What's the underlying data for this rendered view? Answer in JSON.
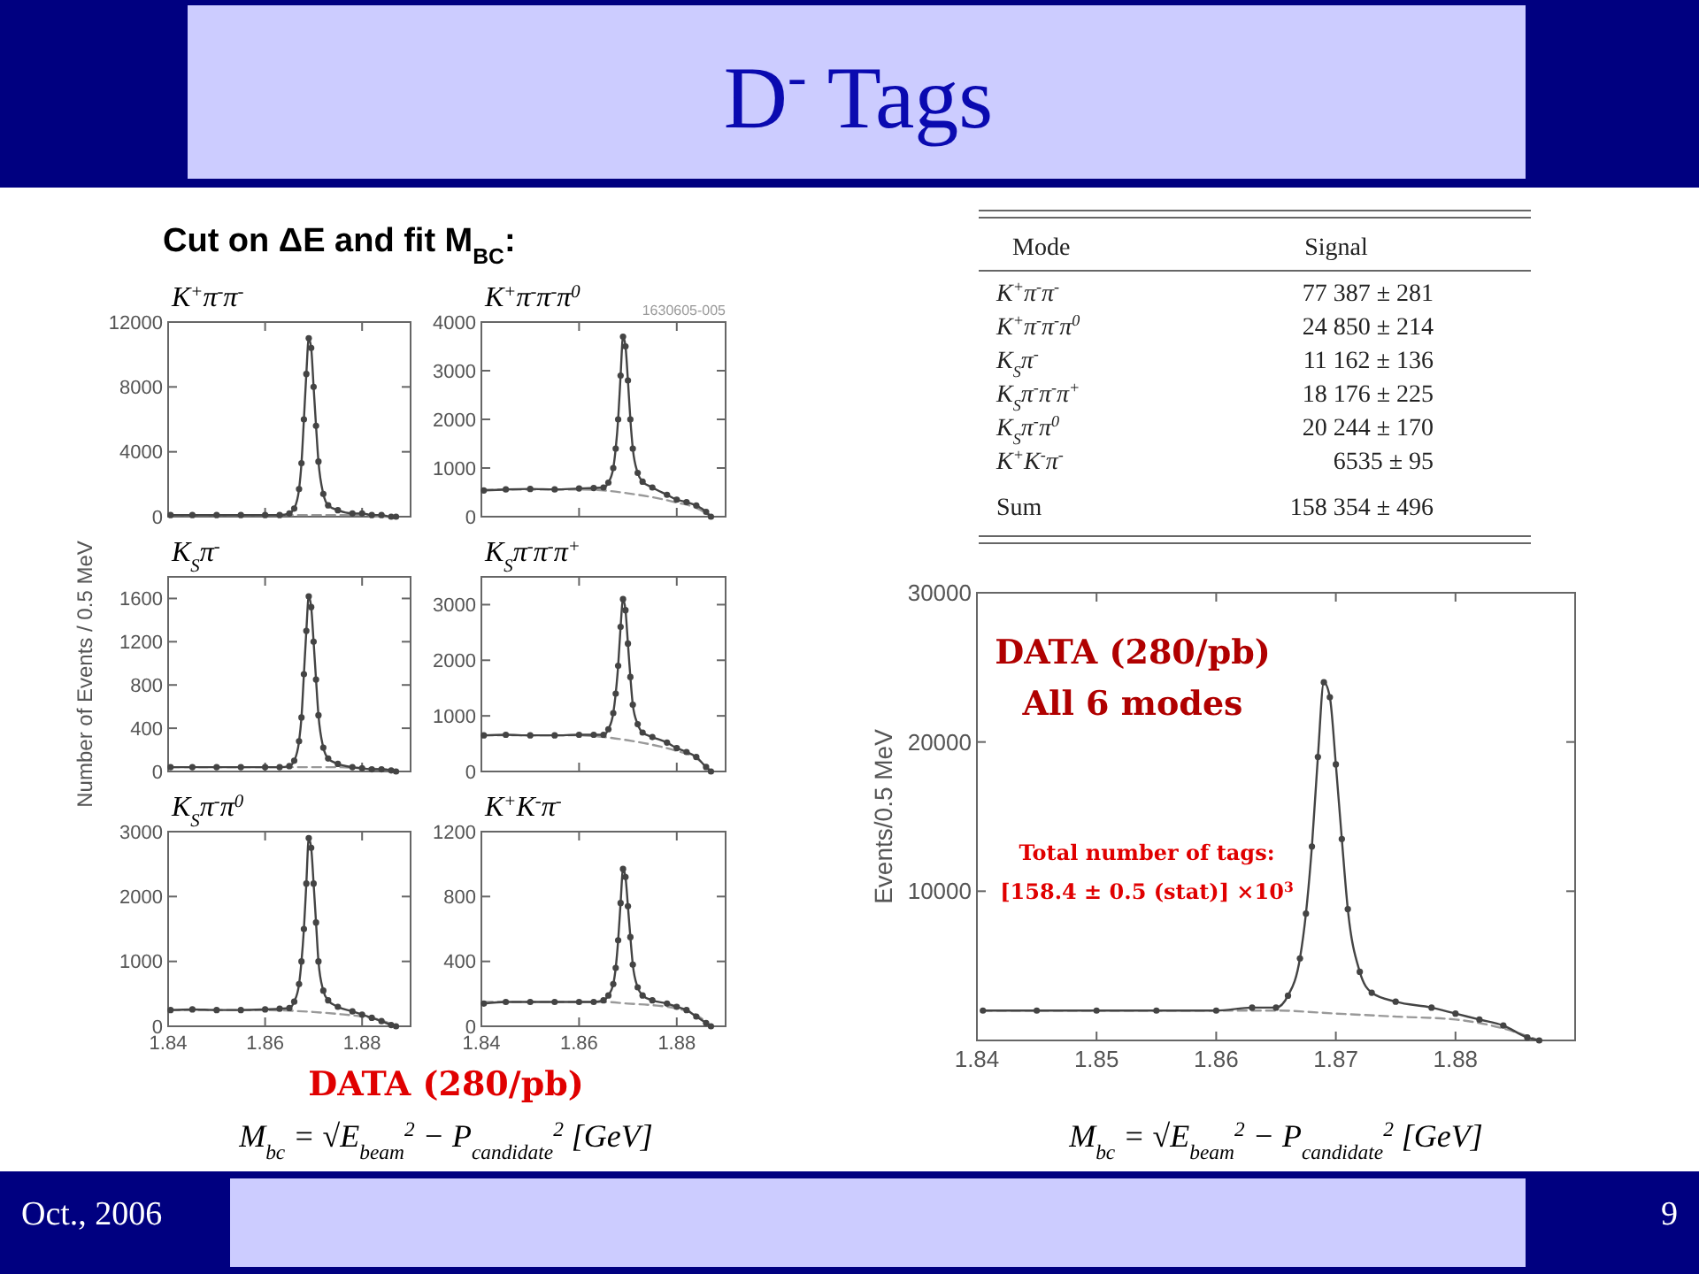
{
  "chart_data": [
    {
      "type": "other",
      "title": "D$^{-}$ Tags",
      "annotations": [
        "Cut on ΔE and fit M$_{BC}$:",
        "Oct., 2006",
        "9"
      ]
    },
    {
      "type": "line",
      "title": "K$^{+}$π$^{-}$π$^{-}$",
      "xlim": [
        1.84,
        1.89
      ],
      "xticks": [
        1.84,
        1.86,
        1.88
      ],
      "ylim": [
        0,
        12000
      ],
      "yticks": [
        0,
        4000,
        8000,
        12000
      ],
      "tick_labels": "y",
      "x": [
        1.8405,
        1.845,
        1.85,
        1.855,
        1.86,
        1.863,
        1.865,
        1.866,
        1.867,
        1.8675,
        1.868,
        1.8685,
        1.869,
        1.8695,
        1.87,
        1.8705,
        1.871,
        1.872,
        1.873,
        1.875,
        1.878,
        1.88,
        1.882,
        1.884,
        1.886,
        1.887
      ],
      "series": [
        {
          "color": "#444444",
          "marker": "circle",
          "values": [
            100,
            100,
            100,
            100,
            100,
            100,
            200,
            500,
            1700,
            3300,
            6000,
            8800,
            11000,
            10400,
            8000,
            5600,
            3400,
            1400,
            700,
            400,
            200,
            200,
            100,
            100,
            0,
            0
          ]
        },
        {
          "color": "#999999",
          "marker": "none",
          "line_style": "dashed",
          "x": [
            1.8405,
            1.85,
            1.86,
            1.865,
            1.87,
            1.875,
            1.88,
            1.884,
            1.887
          ],
          "values": [
            100,
            100,
            100,
            100,
            100,
            100,
            100,
            0,
            0
          ]
        }
      ]
    },
    {
      "type": "line",
      "title": "K$^{+}$π$^{-}$π$^{-}$π$^{0}$",
      "annotations": [
        "1630605-005"
      ],
      "xlim": [
        1.84,
        1.89
      ],
      "xticks": [
        1.84,
        1.86,
        1.88
      ],
      "ylim": [
        0,
        4000
      ],
      "yticks": [
        0,
        1000,
        2000,
        3000,
        4000
      ],
      "tick_labels": "y",
      "x": [
        1.8405,
        1.845,
        1.85,
        1.855,
        1.86,
        1.863,
        1.865,
        1.866,
        1.867,
        1.8675,
        1.868,
        1.8685,
        1.869,
        1.8695,
        1.87,
        1.8705,
        1.871,
        1.872,
        1.873,
        1.875,
        1.878,
        1.88,
        1.882,
        1.884,
        1.886,
        1.887
      ],
      "series": [
        {
          "color": "#444444",
          "marker": "circle",
          "values": [
            540,
            560,
            570,
            560,
            580,
            590,
            600,
            700,
            1000,
            1400,
            2000,
            2900,
            3700,
            3500,
            2800,
            2000,
            1400,
            900,
            720,
            600,
            450,
            350,
            300,
            230,
            100,
            0
          ]
        },
        {
          "color": "#999999",
          "marker": "none",
          "line_style": "dashed",
          "x": [
            1.8405,
            1.85,
            1.86,
            1.865,
            1.87,
            1.875,
            1.88,
            1.884,
            1.887
          ],
          "values": [
            550,
            560,
            560,
            540,
            480,
            400,
            290,
            180,
            0
          ]
        }
      ]
    },
    {
      "type": "line",
      "title": "K$_{S}$π$^{-}$",
      "ylabel": "Number of Events / 0.5 MeV",
      "xlim": [
        1.84,
        1.89
      ],
      "xticks": [
        1.84,
        1.86,
        1.88
      ],
      "ylim": [
        0,
        1800
      ],
      "yticks": [
        0,
        400,
        800,
        1200,
        1600
      ],
      "tick_labels": "y",
      "x": [
        1.8405,
        1.845,
        1.85,
        1.855,
        1.86,
        1.863,
        1.865,
        1.866,
        1.867,
        1.8675,
        1.868,
        1.8685,
        1.869,
        1.8695,
        1.87,
        1.8705,
        1.871,
        1.872,
        1.873,
        1.875,
        1.878,
        1.88,
        1.882,
        1.884,
        1.886,
        1.887
      ],
      "series": [
        {
          "color": "#444444",
          "marker": "circle",
          "values": [
            40,
            40,
            40,
            40,
            40,
            40,
            50,
            100,
            280,
            500,
            900,
            1300,
            1620,
            1520,
            1200,
            850,
            520,
            220,
            120,
            70,
            40,
            30,
            20,
            20,
            10,
            0
          ]
        },
        {
          "color": "#999999",
          "marker": "none",
          "line_style": "dashed",
          "x": [
            1.8405,
            1.85,
            1.86,
            1.865,
            1.87,
            1.875,
            1.88,
            1.884,
            1.887
          ],
          "values": [
            40,
            40,
            40,
            40,
            40,
            40,
            30,
            20,
            0
          ]
        }
      ]
    },
    {
      "type": "line",
      "title": "K$_{S}$π$^{-}$π$^{-}$π$^{+}$",
      "xlim": [
        1.84,
        1.89
      ],
      "xticks": [
        1.84,
        1.86,
        1.88
      ],
      "ylim": [
        0,
        3500
      ],
      "yticks": [
        0,
        1000,
        2000,
        3000
      ],
      "tick_labels": "y",
      "x": [
        1.8405,
        1.845,
        1.85,
        1.855,
        1.86,
        1.863,
        1.865,
        1.866,
        1.867,
        1.8675,
        1.868,
        1.8685,
        1.869,
        1.8695,
        1.87,
        1.8705,
        1.871,
        1.872,
        1.873,
        1.875,
        1.878,
        1.88,
        1.882,
        1.884,
        1.886,
        1.887
      ],
      "series": [
        {
          "color": "#444444",
          "marker": "circle",
          "values": [
            650,
            660,
            650,
            650,
            660,
            660,
            660,
            760,
            1050,
            1400,
            1900,
            2600,
            3100,
            2900,
            2300,
            1700,
            1200,
            850,
            700,
            620,
            520,
            420,
            350,
            260,
            80,
            0
          ]
        },
        {
          "color": "#999999",
          "marker": "none",
          "line_style": "dashed",
          "x": [
            1.8405,
            1.85,
            1.86,
            1.865,
            1.87,
            1.875,
            1.88,
            1.884,
            1.887
          ],
          "values": [
            650,
            650,
            650,
            620,
            560,
            480,
            370,
            240,
            0
          ]
        }
      ]
    },
    {
      "type": "line",
      "title": "K$_{S}$π$^{-}$π$^{0}$",
      "annotations": [
        "DATA (280/pb)"
      ],
      "xlabel": "M$_{bc}$ = √E$_{beam}$$^{2}$ − P$_{candidate}$$^{2}$   [GeV]",
      "xlim": [
        1.84,
        1.89
      ],
      "xticks": [
        1.84,
        1.86,
        1.88
      ],
      "ylim": [
        0,
        3000
      ],
      "yticks": [
        0,
        1000,
        2000,
        3000
      ],
      "x": [
        1.8405,
        1.845,
        1.85,
        1.855,
        1.86,
        1.863,
        1.865,
        1.866,
        1.867,
        1.8675,
        1.868,
        1.8685,
        1.869,
        1.8695,
        1.87,
        1.8705,
        1.871,
        1.872,
        1.873,
        1.875,
        1.878,
        1.88,
        1.882,
        1.884,
        1.886,
        1.887
      ],
      "series": [
        {
          "color": "#444444",
          "marker": "circle",
          "values": [
            250,
            260,
            250,
            250,
            260,
            270,
            280,
            380,
            650,
            1000,
            1500,
            2200,
            2900,
            2750,
            2200,
            1600,
            1000,
            550,
            400,
            300,
            230,
            180,
            130,
            80,
            20,
            0
          ]
        },
        {
          "color": "#999999",
          "marker": "none",
          "line_style": "dashed",
          "x": [
            1.8405,
            1.85,
            1.86,
            1.865,
            1.87,
            1.875,
            1.88,
            1.884,
            1.887
          ],
          "values": [
            250,
            250,
            250,
            240,
            220,
            190,
            150,
            90,
            0
          ]
        }
      ]
    },
    {
      "type": "line",
      "title": "K$^{+}$K$^{-}$π$^{-}$",
      "xlim": [
        1.84,
        1.89
      ],
      "xticks": [
        1.84,
        1.86,
        1.88
      ],
      "ylim": [
        0,
        1200
      ],
      "yticks": [
        0,
        400,
        800,
        1200
      ],
      "x": [
        1.8405,
        1.845,
        1.85,
        1.855,
        1.86,
        1.863,
        1.865,
        1.866,
        1.867,
        1.8675,
        1.868,
        1.8685,
        1.869,
        1.8695,
        1.87,
        1.8705,
        1.871,
        1.872,
        1.873,
        1.875,
        1.878,
        1.88,
        1.882,
        1.884,
        1.886,
        1.887
      ],
      "series": [
        {
          "color": "#444444",
          "marker": "circle",
          "values": [
            140,
            150,
            150,
            150,
            150,
            150,
            160,
            190,
            260,
            360,
            530,
            760,
            970,
            920,
            740,
            550,
            380,
            240,
            190,
            160,
            140,
            120,
            100,
            60,
            20,
            0
          ]
        },
        {
          "color": "#999999",
          "marker": "none",
          "line_style": "dashed",
          "x": [
            1.8405,
            1.85,
            1.86,
            1.865,
            1.87,
            1.875,
            1.88,
            1.884,
            1.887
          ],
          "values": [
            150,
            150,
            150,
            150,
            140,
            130,
            110,
            70,
            0
          ]
        }
      ]
    },
    {
      "type": "other",
      "annotations": [
        "Mode",
        "Signal",
        "K$^{+}$π$^{-}$π$^{-}$",
        "77 387 ± 281",
        "K$^{+}$π$^{-}$π$^{-}$π$^{0}$",
        "24 850 ± 214",
        "K$_{S}$π$^{-}$",
        "11 162 ± 136",
        "K$_{S}$π$^{-}$π$^{-}$π$^{+}$",
        "18 176 ± 225",
        "K$_{S}$π$^{-}$π$^{0}$",
        "20 244 ± 170",
        "K$^{+}$K$^{-}$π$^{-}$",
        "6535 ± 95",
        "Sum",
        "158 354 ± 496"
      ]
    },
    {
      "type": "line",
      "annotations": [
        "DATA (280/pb)",
        "All 6 modes",
        "Total number of tags:",
        "[158.4 ± 0.5 (stat)] ×10$^{3}$"
      ],
      "ylabel": "Events/0.5 MeV",
      "xlabel": "M$_{bc}$ = √E$_{beam}$$^{2}$ − P$_{candidate}$$^{2}$   [GeV]",
      "xlim": [
        1.84,
        1.89
      ],
      "xticks": [
        1.84,
        1.85,
        1.86,
        1.87,
        1.88
      ],
      "ylim": [
        0,
        30000
      ],
      "yticks": [
        {
          "value": 0,
          "label": null
        },
        10000,
        20000,
        30000
      ],
      "x": [
        1.8405,
        1.845,
        1.85,
        1.855,
        1.86,
        1.863,
        1.865,
        1.866,
        1.867,
        1.8675,
        1.868,
        1.8685,
        1.869,
        1.8695,
        1.87,
        1.8705,
        1.871,
        1.872,
        1.873,
        1.875,
        1.878,
        1.88,
        1.882,
        1.884,
        1.886,
        1.887
      ],
      "series": [
        {
          "color": "#444444",
          "marker": "circle",
          "values": [
            2000,
            2000,
            2000,
            2000,
            2000,
            2200,
            2200,
            3000,
            5500,
            8500,
            13000,
            19000,
            24000,
            23000,
            18500,
            13500,
            8800,
            4600,
            3200,
            2600,
            2200,
            1800,
            1400,
            1000,
            200,
            0
          ]
        },
        {
          "color": "#999999",
          "marker": "none",
          "line_style": "dashed",
          "x": [
            1.8405,
            1.85,
            1.86,
            1.865,
            1.87,
            1.875,
            1.88,
            1.884,
            1.887
          ],
          "values": [
            2000,
            2000,
            2000,
            2000,
            1800,
            1600,
            1400,
            800,
            0
          ]
        }
      ]
    }
  ]
}
